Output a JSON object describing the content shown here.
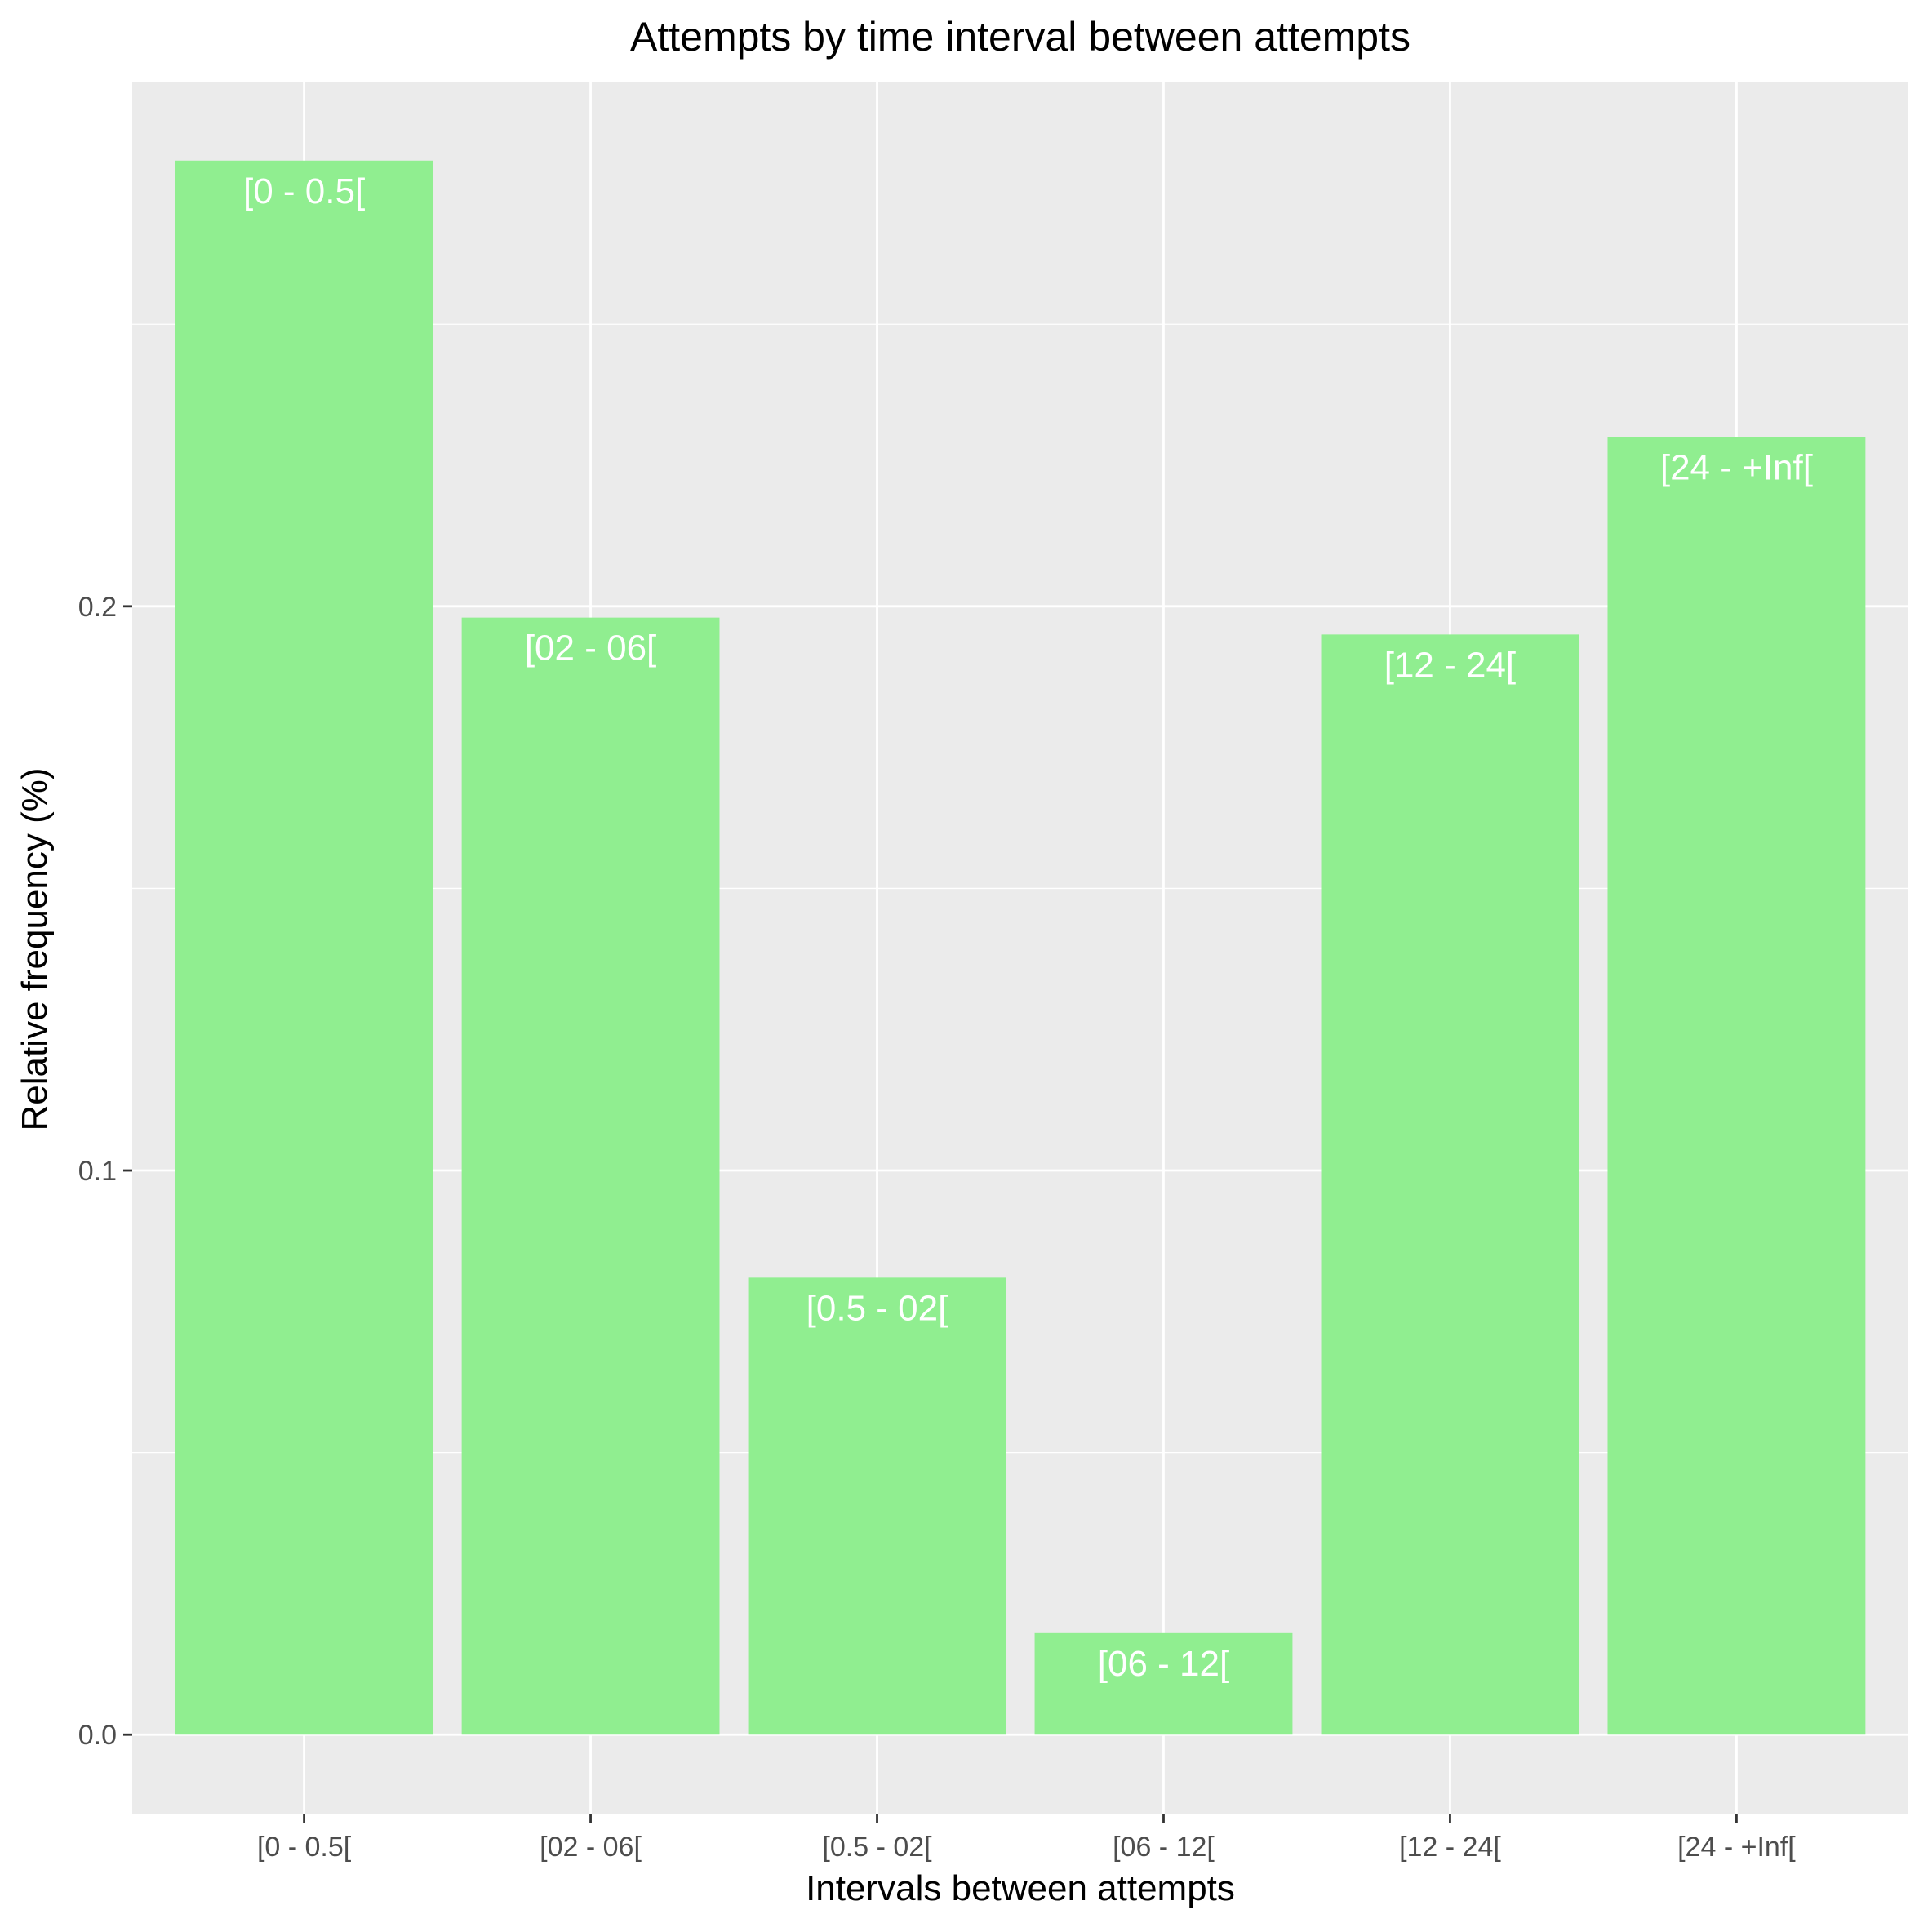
{
  "colors": {
    "panel_background": "#ebebeb",
    "grid": "#ffffff",
    "bar_fill": "#90ee90",
    "bar_label": "#ffffff",
    "tick": "#333333"
  },
  "chart_data": {
    "type": "bar",
    "title": "Attempts by time interval between attempts",
    "xlabel": "Intervals between attempts",
    "ylabel": "Relative frequency (%)",
    "categories": [
      "[0 - 0.5[",
      "[02 - 06[",
      "[0.5 - 02[",
      "[06 - 12[",
      "[12 - 24[",
      "[24 - +Inf["
    ],
    "values": [
      0.279,
      0.198,
      0.081,
      0.018,
      0.195,
      0.23
    ],
    "bar_labels": [
      "[0 - 0.5[",
      "[02 - 06[",
      "[0.5 - 02[",
      "[06 - 12[",
      "[12 - 24[",
      "[24 - +Inf["
    ],
    "ylim": [
      -0.014,
      0.293
    ],
    "yticks": [
      0.0,
      0.1,
      0.2
    ],
    "ytick_labels": [
      "0.0",
      "0.1",
      "0.2"
    ],
    "y_minor_ticks": [
      0.05,
      0.15,
      0.25
    ],
    "grid": true,
    "legend": "none"
  }
}
